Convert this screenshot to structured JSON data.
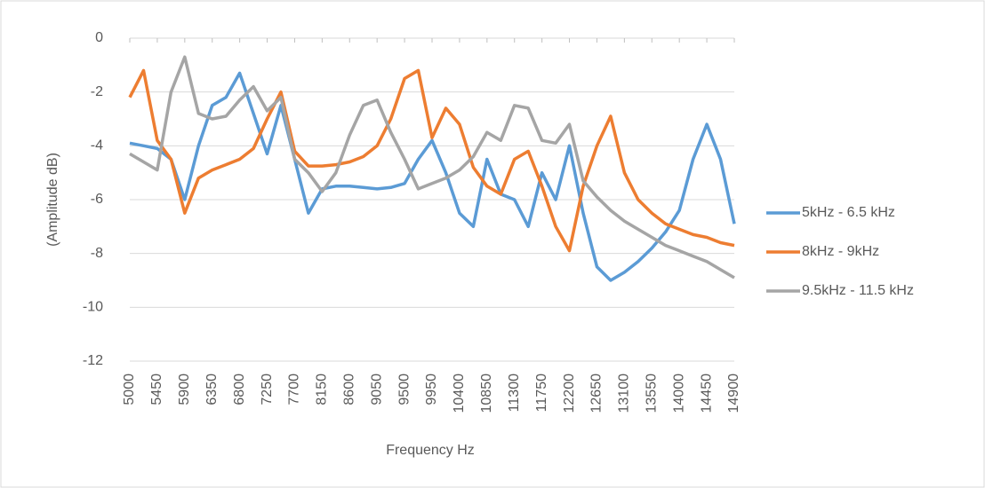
{
  "chart_data": {
    "type": "line",
    "x_label": "Frequency Hz",
    "y_label": "(Amplitude dB)",
    "x": [
      5000,
      5225,
      5450,
      5675,
      5900,
      6125,
      6350,
      6575,
      6800,
      7025,
      7250,
      7475,
      7700,
      7925,
      8150,
      8375,
      8600,
      8825,
      9050,
      9275,
      9500,
      9725,
      9950,
      10175,
      10400,
      10625,
      10850,
      11075,
      11300,
      11525,
      11750,
      11975,
      12200,
      12425,
      12650,
      12875,
      13100,
      13325,
      13550,
      13775,
      14000,
      14225,
      14450,
      14675,
      14900
    ],
    "series": [
      {
        "name": "5kHz - 6.5 kHz",
        "color": "#5b9bd5",
        "values": [
          -3.9,
          -4.0,
          -4.1,
          -4.5,
          -6.0,
          -4.0,
          -2.5,
          -2.2,
          -1.3,
          -2.8,
          -4.3,
          -2.5,
          -4.5,
          -6.5,
          -5.6,
          -5.5,
          -5.5,
          -5.55,
          -5.6,
          -5.55,
          -5.4,
          -4.5,
          -3.8,
          -5.0,
          -6.5,
          -7.0,
          -4.5,
          -5.8,
          -6.0,
          -7.0,
          -5.0,
          -6.0,
          -4.0,
          -6.5,
          -8.5,
          -9.0,
          -8.7,
          -8.3,
          -7.8,
          -7.2,
          -6.4,
          -4.5,
          -3.2,
          -4.5,
          -6.9
        ]
      },
      {
        "name": "8kHz - 9kHz",
        "color": "#ed7d31",
        "values": [
          -2.2,
          -1.2,
          -3.8,
          -4.5,
          -6.5,
          -5.2,
          -4.9,
          -4.7,
          -4.5,
          -4.1,
          -3.0,
          -2.0,
          -4.2,
          -4.75,
          -4.75,
          -4.7,
          -4.6,
          -4.4,
          -4.0,
          -3.0,
          -1.5,
          -1.2,
          -3.7,
          -2.6,
          -3.2,
          -4.8,
          -5.5,
          -5.8,
          -4.5,
          -4.2,
          -5.5,
          -7.0,
          -7.9,
          -5.5,
          -4.0,
          -2.9,
          -5.0,
          -6.0,
          -6.5,
          -6.9,
          -7.1,
          -7.3,
          -7.4,
          -7.6,
          -7.7
        ]
      },
      {
        "name": "9.5kHz - 11.5 kHz",
        "color": "#a5a5a5",
        "values": [
          -4.3,
          -4.6,
          -4.9,
          -2.0,
          -0.7,
          -2.8,
          -3.0,
          -2.9,
          -2.3,
          -1.8,
          -2.7,
          -2.2,
          -4.5,
          -5.0,
          -5.7,
          -5.0,
          -3.6,
          -2.5,
          -2.3,
          -3.5,
          -4.5,
          -5.6,
          -5.4,
          -5.2,
          -4.9,
          -4.4,
          -3.5,
          -3.8,
          -2.5,
          -2.6,
          -3.8,
          -3.9,
          -3.2,
          -5.3,
          -5.9,
          -6.4,
          -6.8,
          -7.1,
          -7.4,
          -7.7,
          -7.9,
          -8.1,
          -8.3,
          -8.6,
          -8.9
        ]
      }
    ],
    "xlim": [
      5000,
      14900
    ],
    "xticks": [
      5000,
      5450,
      5900,
      6350,
      6800,
      7250,
      7700,
      8150,
      8600,
      9050,
      9500,
      9950,
      10400,
      10850,
      11300,
      11750,
      12200,
      12650,
      13100,
      13550,
      14000,
      14450,
      14900
    ],
    "ylim": [
      -12,
      0
    ],
    "yticks": [
      0,
      -2,
      -4,
      -6,
      -8,
      -10,
      -12
    ],
    "grid": true,
    "legend": "right"
  }
}
